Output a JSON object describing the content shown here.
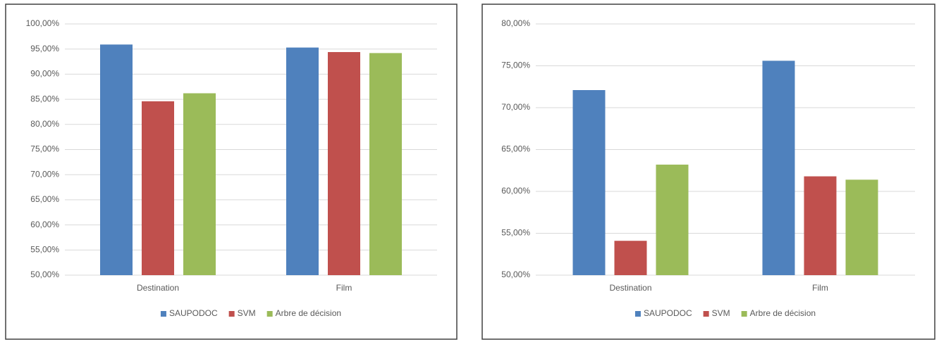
{
  "chart_data": [
    {
      "type": "bar",
      "categories": [
        "Destination",
        "Film"
      ],
      "series": [
        {
          "name": "SAUPODOC",
          "color": "#4f81bd",
          "values": [
            95.9,
            95.3
          ]
        },
        {
          "name": "SVM",
          "color": "#c0504d",
          "values": [
            84.6,
            94.4
          ]
        },
        {
          "name": "Arbre de décision",
          "color": "#9bbb59",
          "values": [
            86.2,
            94.2
          ]
        }
      ],
      "ylim": [
        50,
        100
      ],
      "yticks": [
        {
          "value": 50,
          "label": "50,00%"
        },
        {
          "value": 55,
          "label": "55,00%"
        },
        {
          "value": 60,
          "label": "60,00%"
        },
        {
          "value": 65,
          "label": "65,00%"
        },
        {
          "value": 70,
          "label": "70,00%"
        },
        {
          "value": 75,
          "label": "75,00%"
        },
        {
          "value": 80,
          "label": "80,00%"
        },
        {
          "value": 85,
          "label": "85,00%"
        },
        {
          "value": 90,
          "label": "90,00%"
        },
        {
          "value": 95,
          "label": "95,00%"
        },
        {
          "value": 100,
          "label": "100,00%"
        }
      ],
      "grid": true,
      "legend": "bottom"
    },
    {
      "type": "bar",
      "categories": [
        "Destination",
        "Film"
      ],
      "series": [
        {
          "name": "SAUPODOC",
          "color": "#4f81bd",
          "values": [
            72.1,
            75.6
          ]
        },
        {
          "name": "SVM",
          "color": "#c0504d",
          "values": [
            54.1,
            61.8
          ]
        },
        {
          "name": "Arbre de décision",
          "color": "#9bbb59",
          "values": [
            63.2,
            61.4
          ]
        }
      ],
      "ylim": [
        50,
        80
      ],
      "yticks": [
        {
          "value": 50,
          "label": "50,00%"
        },
        {
          "value": 55,
          "label": "55,00%"
        },
        {
          "value": 60,
          "label": "60,00%"
        },
        {
          "value": 65,
          "label": "65,00%"
        },
        {
          "value": 70,
          "label": "70,00%"
        },
        {
          "value": 75,
          "label": "75,00%"
        },
        {
          "value": 80,
          "label": "80,00%"
        }
      ],
      "grid": true,
      "legend": "bottom"
    }
  ]
}
